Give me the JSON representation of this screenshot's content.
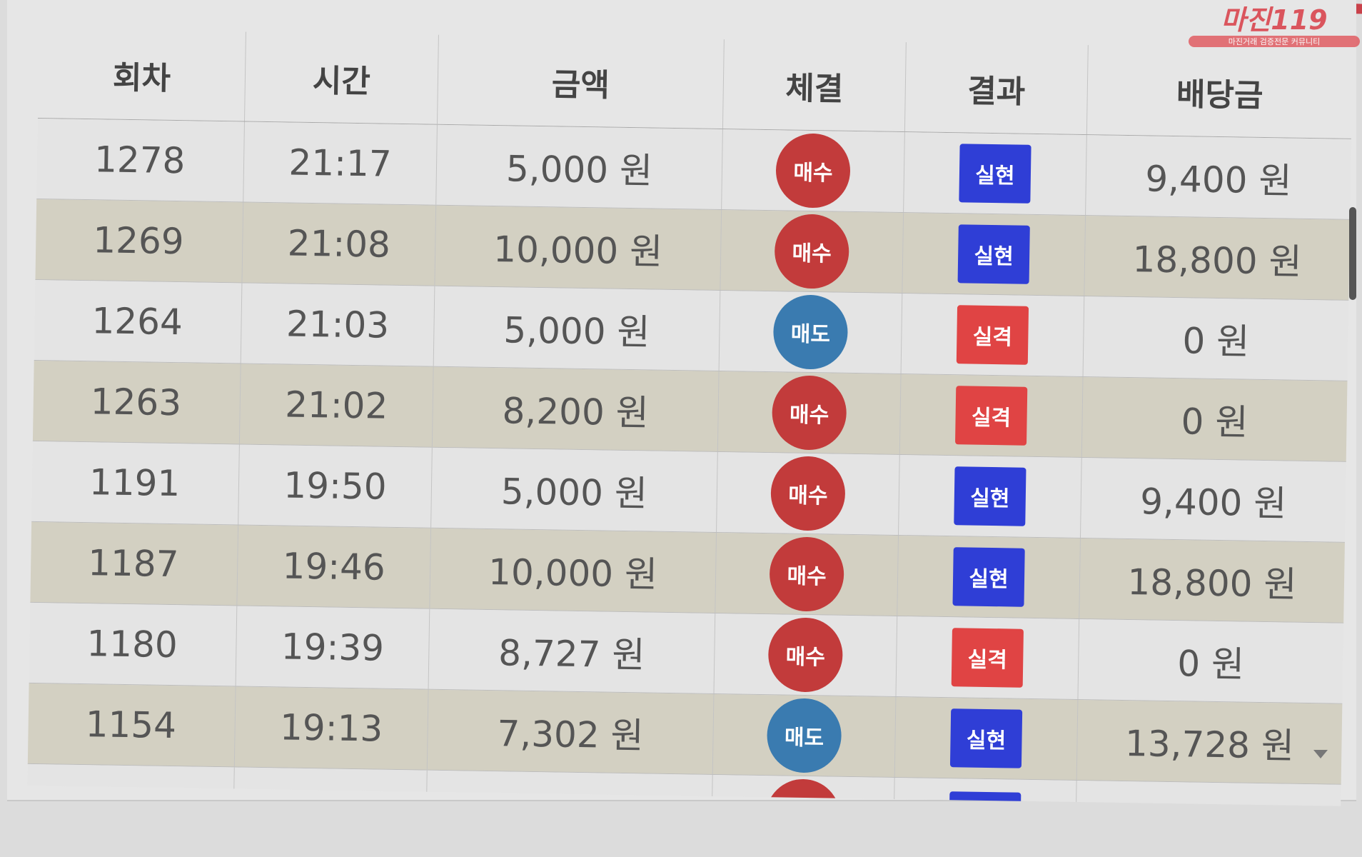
{
  "watermark": {
    "brand": "마진119",
    "tagline": "마진거래 검증전문 커뮤니티"
  },
  "colors": {
    "buy": "#c23b3b",
    "sell": "#3a7bb0",
    "win": "#2f3ed6",
    "lose": "#e04444"
  },
  "table": {
    "headers": [
      "회차",
      "시간",
      "금액",
      "체결",
      "결과",
      "배당금"
    ],
    "rows": [
      {
        "round": "1278",
        "time": "21:17",
        "amount": "5,000 원",
        "trade": "매수",
        "trade_type": "buy",
        "result": "실현",
        "result_type": "win",
        "payout": "9,400 원"
      },
      {
        "round": "1269",
        "time": "21:08",
        "amount": "10,000 원",
        "trade": "매수",
        "trade_type": "buy",
        "result": "실현",
        "result_type": "win",
        "payout": "18,800 원"
      },
      {
        "round": "1264",
        "time": "21:03",
        "amount": "5,000 원",
        "trade": "매도",
        "trade_type": "sell",
        "result": "실격",
        "result_type": "lose",
        "payout": "0 원"
      },
      {
        "round": "1263",
        "time": "21:02",
        "amount": "8,200 원",
        "trade": "매수",
        "trade_type": "buy",
        "result": "실격",
        "result_type": "lose",
        "payout": "0 원"
      },
      {
        "round": "1191",
        "time": "19:50",
        "amount": "5,000 원",
        "trade": "매수",
        "trade_type": "buy",
        "result": "실현",
        "result_type": "win",
        "payout": "9,400 원"
      },
      {
        "round": "1187",
        "time": "19:46",
        "amount": "10,000 원",
        "trade": "매수",
        "trade_type": "buy",
        "result": "실현",
        "result_type": "win",
        "payout": "18,800 원"
      },
      {
        "round": "1180",
        "time": "19:39",
        "amount": "8,727 원",
        "trade": "매수",
        "trade_type": "buy",
        "result": "실격",
        "result_type": "lose",
        "payout": "0 원"
      },
      {
        "round": "1154",
        "time": "19:13",
        "amount": "7,302 원",
        "trade": "매도",
        "trade_type": "sell",
        "result": "실현",
        "result_type": "win",
        "payout": "13,728 원"
      }
    ]
  }
}
